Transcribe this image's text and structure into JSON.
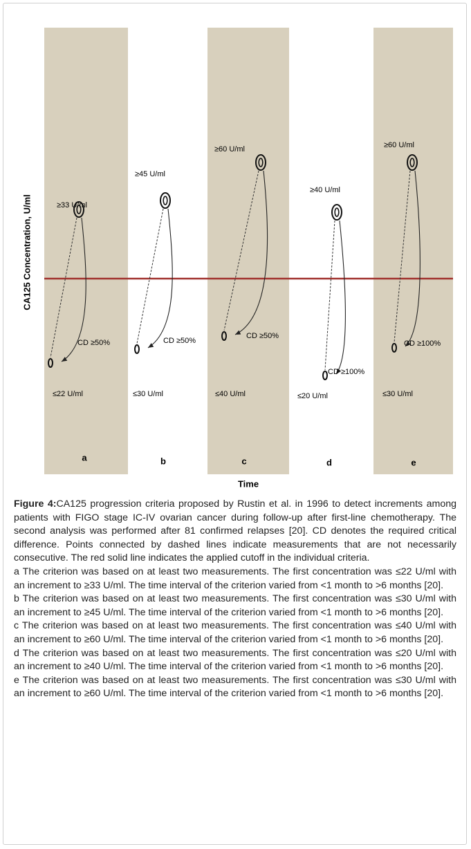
{
  "figure": {
    "y_label": "CA125 Concentration, U/ml",
    "x_label": "Time",
    "panels": [
      {
        "letter": "a",
        "upper": "≥33 U/ml",
        "lower": "≤22 U/ml",
        "cd": "CD ≥50%"
      },
      {
        "letter": "b",
        "upper": "≥45 U/ml",
        "lower": "≤30 U/ml",
        "cd": "CD ≥50%"
      },
      {
        "letter": "c",
        "upper": "≥60 U/ml",
        "lower": "≤40 U/ml",
        "cd": "CD ≥50%"
      },
      {
        "letter": "d",
        "upper": "≥40 U/ml",
        "lower": "≤20 U/ml",
        "cd": "CD ≥100%"
      },
      {
        "letter": "e",
        "upper": "≥60 U/ml",
        "lower": "≤30 U/ml",
        "cd": "CD ≥100%"
      }
    ]
  },
  "caption": {
    "label": "Figure 4:",
    "text": "CA125 progression criteria proposed by Rustin et al. in 1996 to detect increments among patients with FIGO stage IC-IV ovarian cancer during follow-up after first-line chemotherapy. The second analysis was performed after 81 confirmed relapses [20]. CD denotes the required critical difference. Points connected by dashed lines indicate measurements that are not necessarily consecutive. The red solid line indicates the applied cutoff in the individual criteria.",
    "items": [
      "a The criterion was based on at least two measurements. The first concentration was ≤22 U/ml with an increment to ≥33 U/ml. The time interval of the criterion varied from <1 month to >6 months [20].",
      "b The criterion was based on at least two measurements. The first concentration was ≤30 U/ml with an increment to ≥45 U/ml. The time interval of the criterion varied from <1 month to >6 months [20].",
      "c The criterion was based on at least two measurements. The first concentration was ≤40 U/ml with an increment to ≥60 U/ml. The time interval of the criterion varied from <1 month to >6 months [20].",
      "d The criterion was based on at least two measurements. The first concentration was ≤20 U/ml with an increment to ≥40 U/ml. The time interval of the criterion varied from <1 month to >6 months [20].",
      "e The criterion was based on at least two measurements. The first concentration was ≤30 U/ml with an increment to ≥60 U/ml. The time interval of the criterion varied from <1 month to >6 months [20]."
    ]
  }
}
